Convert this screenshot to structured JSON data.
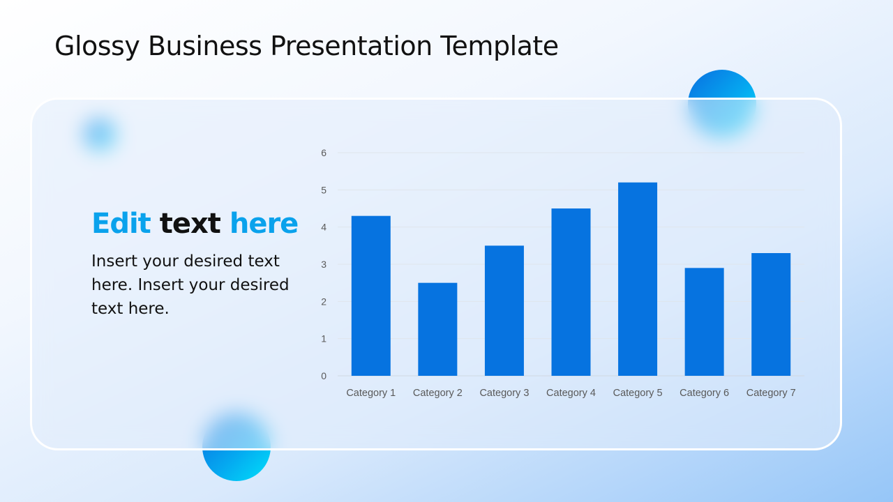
{
  "slide": {
    "title": "Glossy Business Presentation Template",
    "heading": {
      "part1": "Edit",
      "part2": "text",
      "part3": "here"
    },
    "body": "Insert your desired text here. Insert your desired text here."
  },
  "colors": {
    "bar": "#0673e0",
    "heading_accent": "#0aa2ec",
    "orb": "#05a8f0"
  },
  "chart_data": {
    "type": "bar",
    "categories": [
      "Category 1",
      "Category 2",
      "Category 3",
      "Category 4",
      "Category 5",
      "Category 6",
      "Category 7"
    ],
    "values": [
      4.3,
      2.5,
      3.5,
      4.5,
      5.2,
      2.9,
      3.3
    ],
    "ylim": [
      0,
      6
    ],
    "yticks": [
      "0",
      "1",
      "2",
      "3",
      "4",
      "5",
      "6"
    ],
    "grid": true,
    "title": "",
    "xlabel": "",
    "ylabel": ""
  }
}
